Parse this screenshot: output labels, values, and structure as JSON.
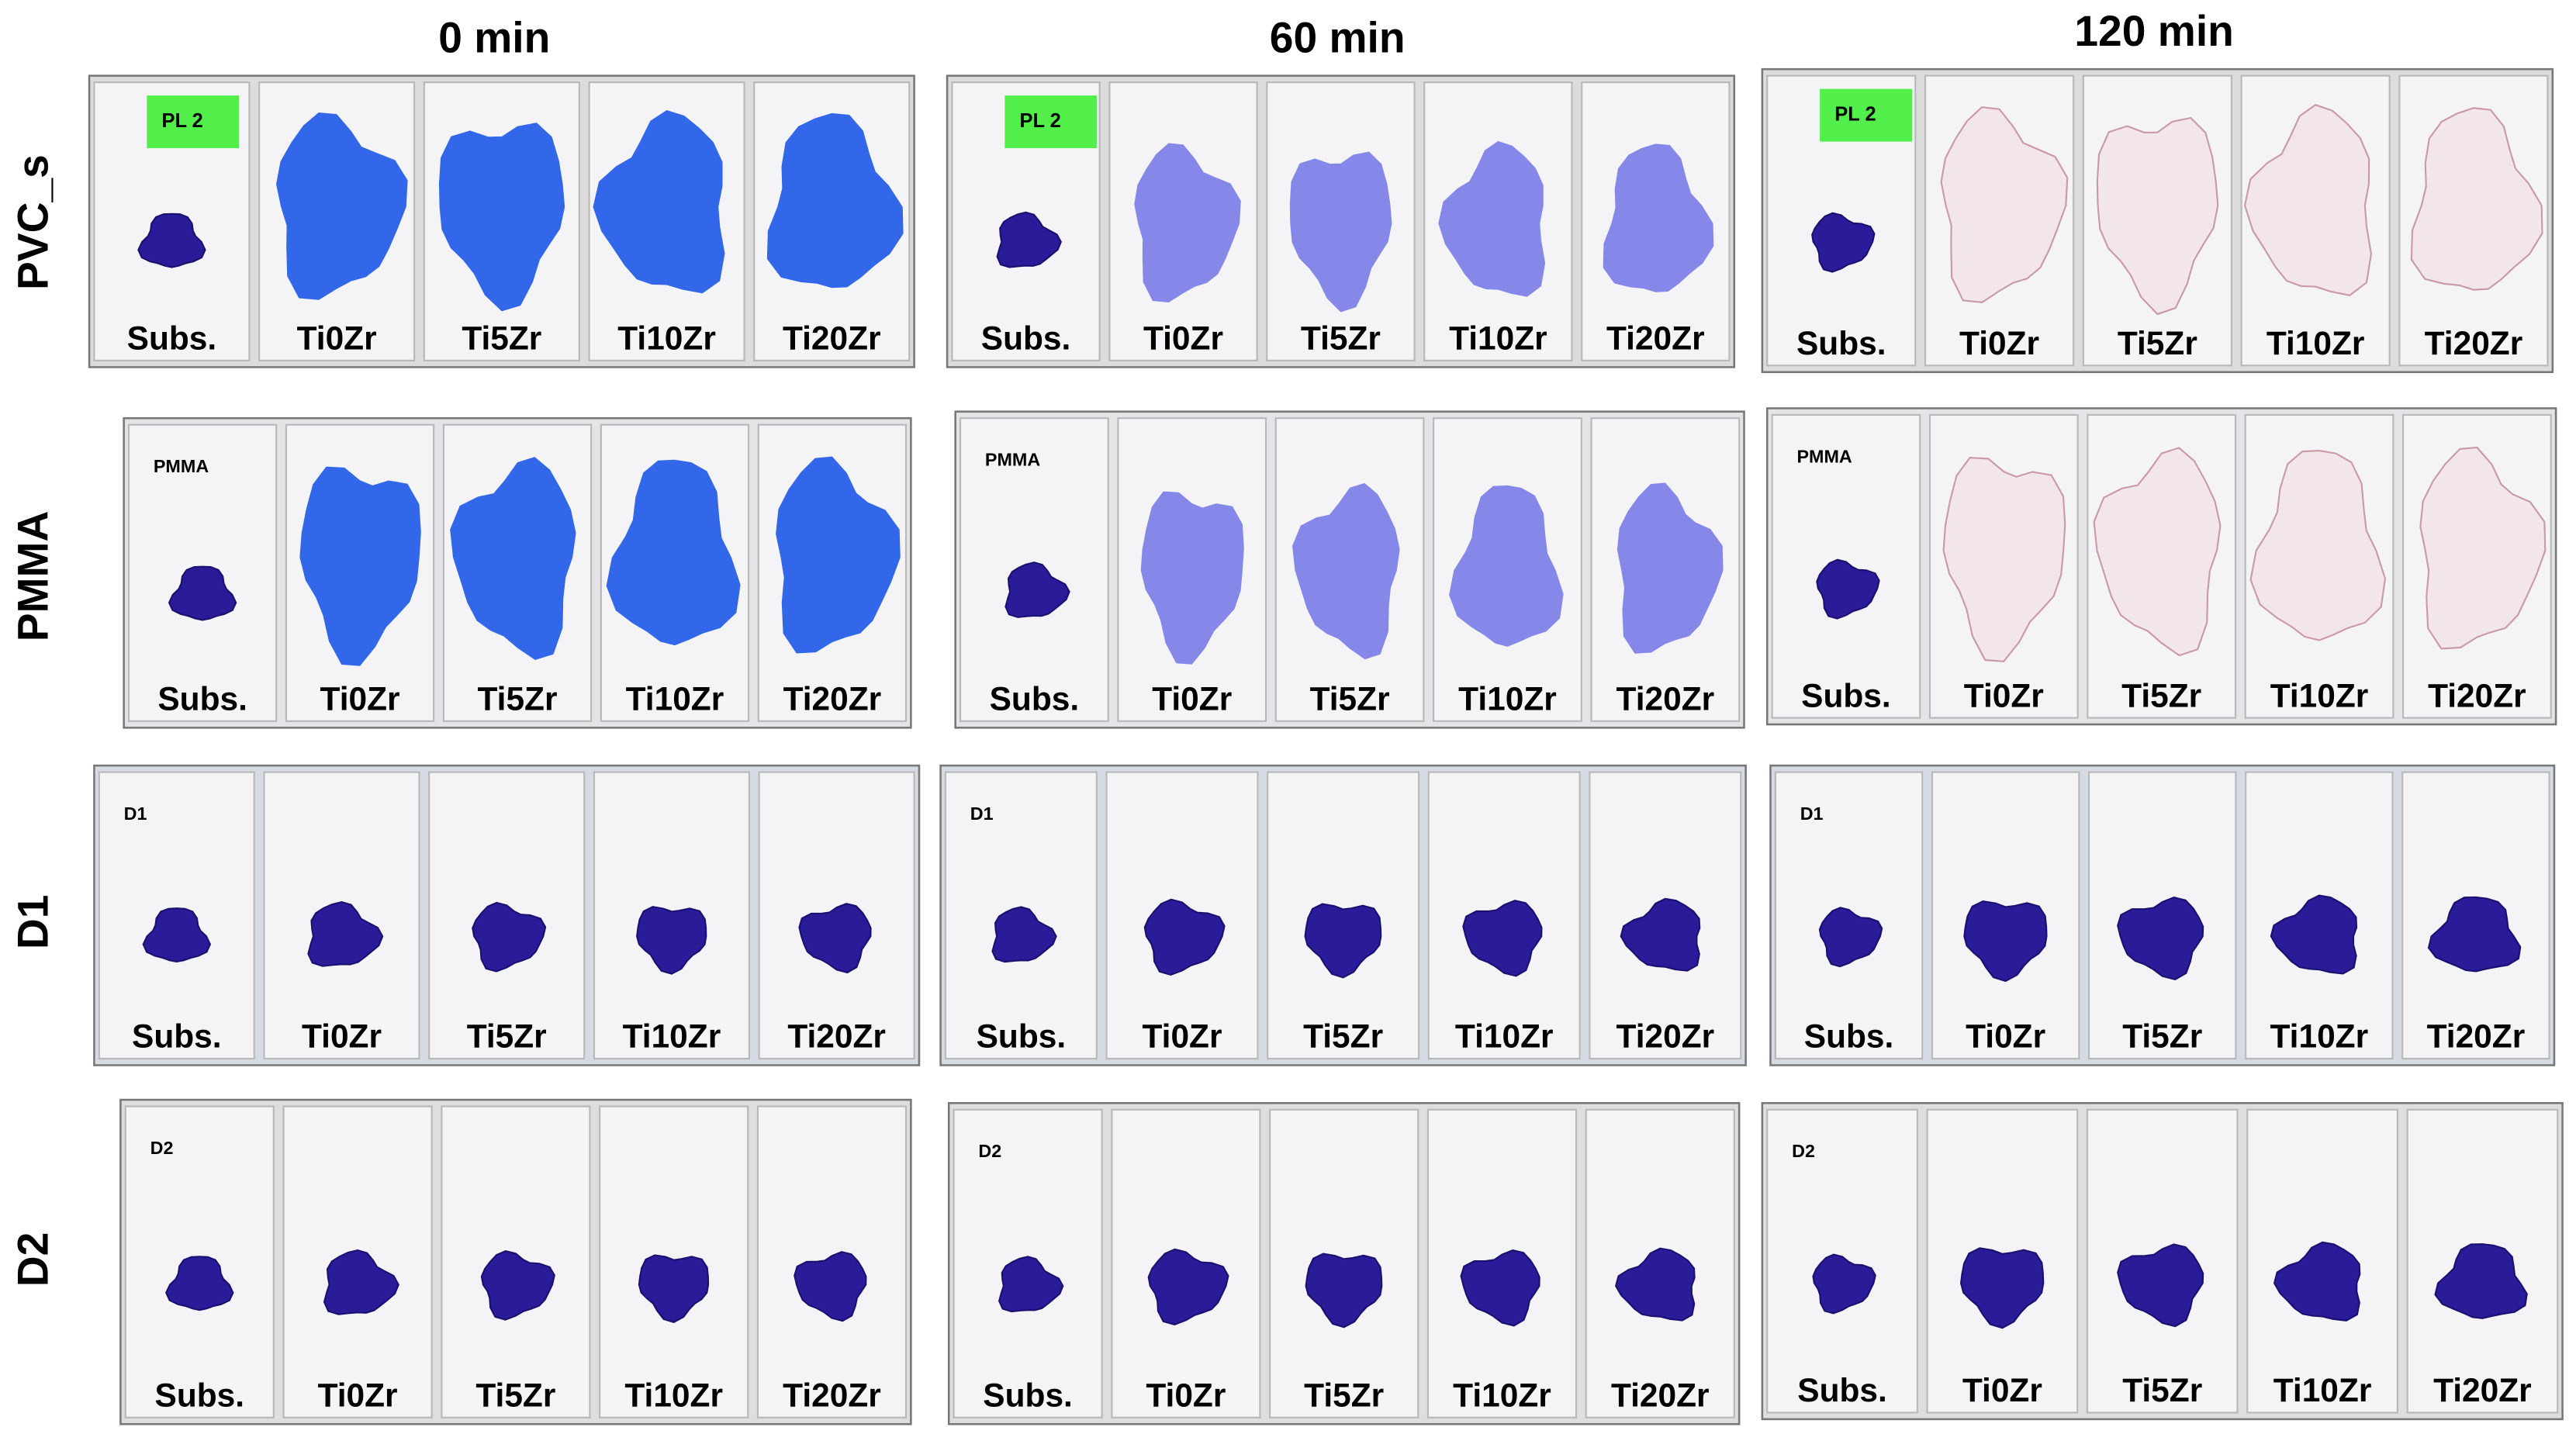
{
  "columns": [
    "0 min",
    "60 min",
    "120 min"
  ],
  "rows": [
    {
      "label": "PVC_s",
      "tag": "PL 2"
    },
    {
      "label": "PMMA",
      "tag": "PMMA"
    },
    {
      "label": "D1",
      "tag": "D1"
    },
    {
      "label": "D2",
      "tag": "D2"
    }
  ],
  "samples": [
    "Subs.",
    "Ti0Zr",
    "Ti5Zr",
    "Ti10Zr",
    "Ti20Zr"
  ]
}
